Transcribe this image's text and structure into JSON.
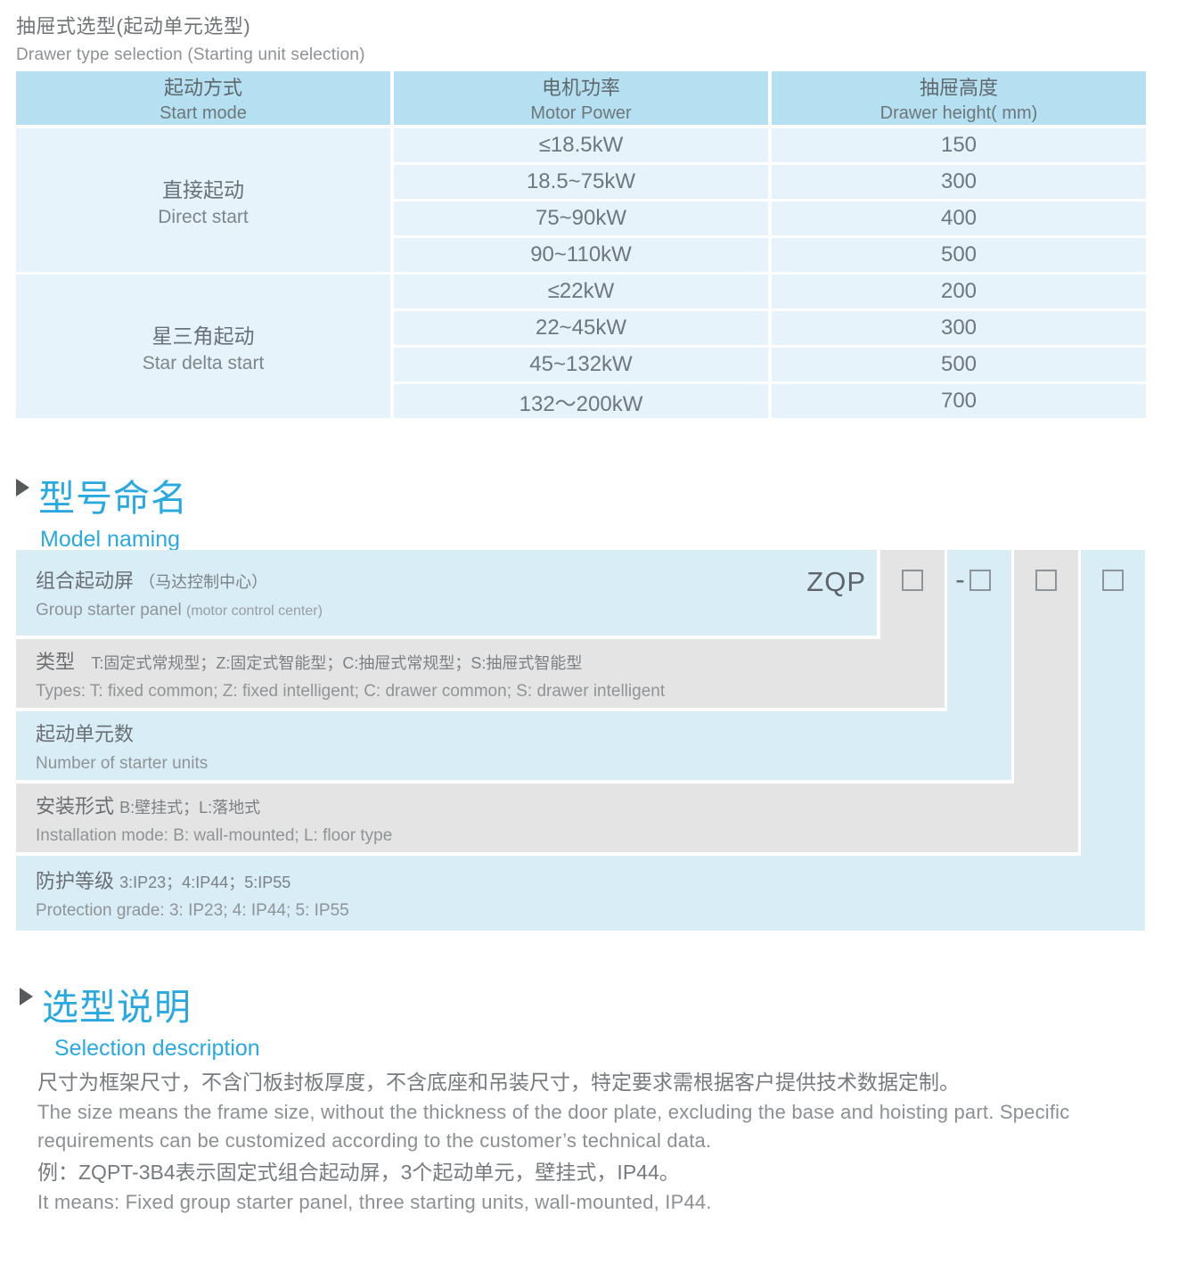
{
  "page": {
    "title_cn": "抽屉式选型(起动单元选型)",
    "title_en": "Drawer type selection (Starting unit selection)"
  },
  "colors": {
    "accent_blue": "#29a9e0",
    "table_header_blue": "#b5e0f1",
    "table_cell_blue": "#e7f3fa",
    "band_blue": "#d9edf7",
    "band_gray": "#e4e4e4"
  },
  "selection_table": {
    "columns": [
      {
        "cn": "起动方式",
        "en": "Start mode"
      },
      {
        "cn": "电机功率",
        "en": "Motor Power"
      },
      {
        "cn": "抽屉高度",
        "en": "Drawer height( mm)"
      }
    ],
    "groups": [
      {
        "mode_cn": "直接起动",
        "mode_en": "Direct start",
        "rows": [
          {
            "power": "≤18.5kW",
            "height": "150"
          },
          {
            "power": "18.5~75kW",
            "height": "300"
          },
          {
            "power": "75~90kW",
            "height": "400"
          },
          {
            "power": "90~110kW",
            "height": "500"
          }
        ]
      },
      {
        "mode_cn": "星三角起动",
        "mode_en": "Star delta start",
        "rows": [
          {
            "power": "≤22kW",
            "height": "200"
          },
          {
            "power": "22~45kW",
            "height": "300"
          },
          {
            "power": "45~132kW",
            "height": "500"
          },
          {
            "power": "132～200kW",
            "height": "700"
          }
        ]
      }
    ]
  },
  "model_naming": {
    "heading_cn": "型号命名",
    "heading_en": "Model naming",
    "code": "ZQP",
    "dash": "-",
    "rows": [
      {
        "cn_main": "组合起动屏",
        "cn_sub": "（马达控制中心）",
        "en_main": "Group starter panel",
        "en_sub": "(motor control center)"
      },
      {
        "cn_main": "类型",
        "cn_sub": "T:固定式常规型；Z:固定式智能型；C:抽屉式常规型；S:抽屉式智能型",
        "en_main": "Types: T: fixed common; Z: fixed intelligent; C: drawer common; S: drawer intelligent"
      },
      {
        "cn_main": "起动单元数",
        "en_main": "Number of starter units"
      },
      {
        "cn_main": "安装形式",
        "cn_sub": "B:壁挂式；L:落地式",
        "en_main": "Installation mode: B: wall-mounted; L: floor type"
      },
      {
        "cn_main": "防护等级",
        "cn_sub": "3:IP23；4:IP44；5:IP55",
        "en_main": "Protection grade: 3: IP23; 4: IP44; 5: IP55"
      }
    ]
  },
  "selection_desc": {
    "heading_cn": "选型说明",
    "heading_en": "Selection description",
    "para_cn": "尺寸为框架尺寸，不含门板封板厚度，不含底座和吊装尺寸，特定要求需根据客户提供技术数据定制。",
    "para_en": "The size means the frame size, without the thickness of the door plate, excluding the base and hoisting part. Specific requirements can be customized according to the customer’s technical data.",
    "example_cn": "例：ZQPT-3B4表示固定式组合起动屏，3个起动单元，壁挂式，IP44。",
    "example_en": "It means: Fixed group starter panel, three starting units, wall-mounted, IP44."
  }
}
